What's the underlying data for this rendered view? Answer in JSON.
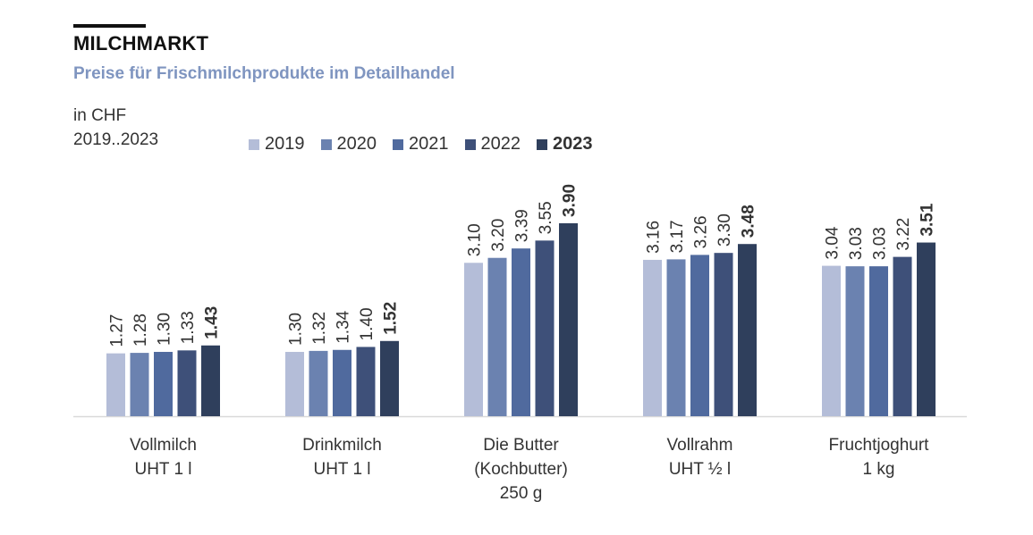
{
  "header": {
    "title": "MILCHMARKT",
    "subtitle": "Preise für Frischmilchprodukte im Detailhandel",
    "unit_line1": "in CHF",
    "unit_line2": "2019..2023"
  },
  "chart_data": {
    "type": "bar",
    "title": "MILCHMARKT",
    "subtitle": "Preise für Frischmilchprodukte im Detailhandel",
    "xlabel": "",
    "ylabel": "in CHF",
    "ylim": [
      0,
      4.2
    ],
    "grid": false,
    "legend_position": "top",
    "categories": [
      [
        "Vollmilch",
        "UHT 1 l"
      ],
      [
        "Drinkmilch",
        "UHT 1 l"
      ],
      [
        "Die Butter",
        "(Kochbutter)",
        "250 g"
      ],
      [
        "Vollrahm",
        "UHT ½ l"
      ],
      [
        "Fruchtjoghurt",
        "1 kg"
      ]
    ],
    "series": [
      {
        "name": "2019",
        "color": "#b4bdd8",
        "bold": false,
        "values": [
          1.27,
          1.3,
          3.1,
          3.16,
          3.04
        ],
        "labels": [
          "1.27",
          "1.30",
          "3.10",
          "3.16",
          "3.04"
        ]
      },
      {
        "name": "2020",
        "color": "#6b82b0",
        "bold": false,
        "values": [
          1.28,
          1.32,
          3.2,
          3.17,
          3.03
        ],
        "labels": [
          "1.28",
          "1.32",
          "3.20",
          "3.17",
          "3.03"
        ]
      },
      {
        "name": "2021",
        "color": "#506a9e",
        "bold": false,
        "values": [
          1.3,
          1.34,
          3.39,
          3.26,
          3.03
        ],
        "labels": [
          "1.30",
          "1.34",
          "3.39",
          "3.26",
          "3.03"
        ]
      },
      {
        "name": "2022",
        "color": "#3e5079",
        "bold": false,
        "values": [
          1.33,
          1.4,
          3.55,
          3.3,
          3.22
        ],
        "labels": [
          "1.33",
          "1.40",
          "3.55",
          "3.30",
          "3.22"
        ]
      },
      {
        "name": "2023",
        "color": "#2f3f5c",
        "bold": true,
        "values": [
          1.43,
          1.52,
          3.9,
          3.48,
          3.51
        ],
        "labels": [
          "1.43",
          "1.52",
          "3.90",
          "3.48",
          "3.51"
        ]
      }
    ]
  }
}
